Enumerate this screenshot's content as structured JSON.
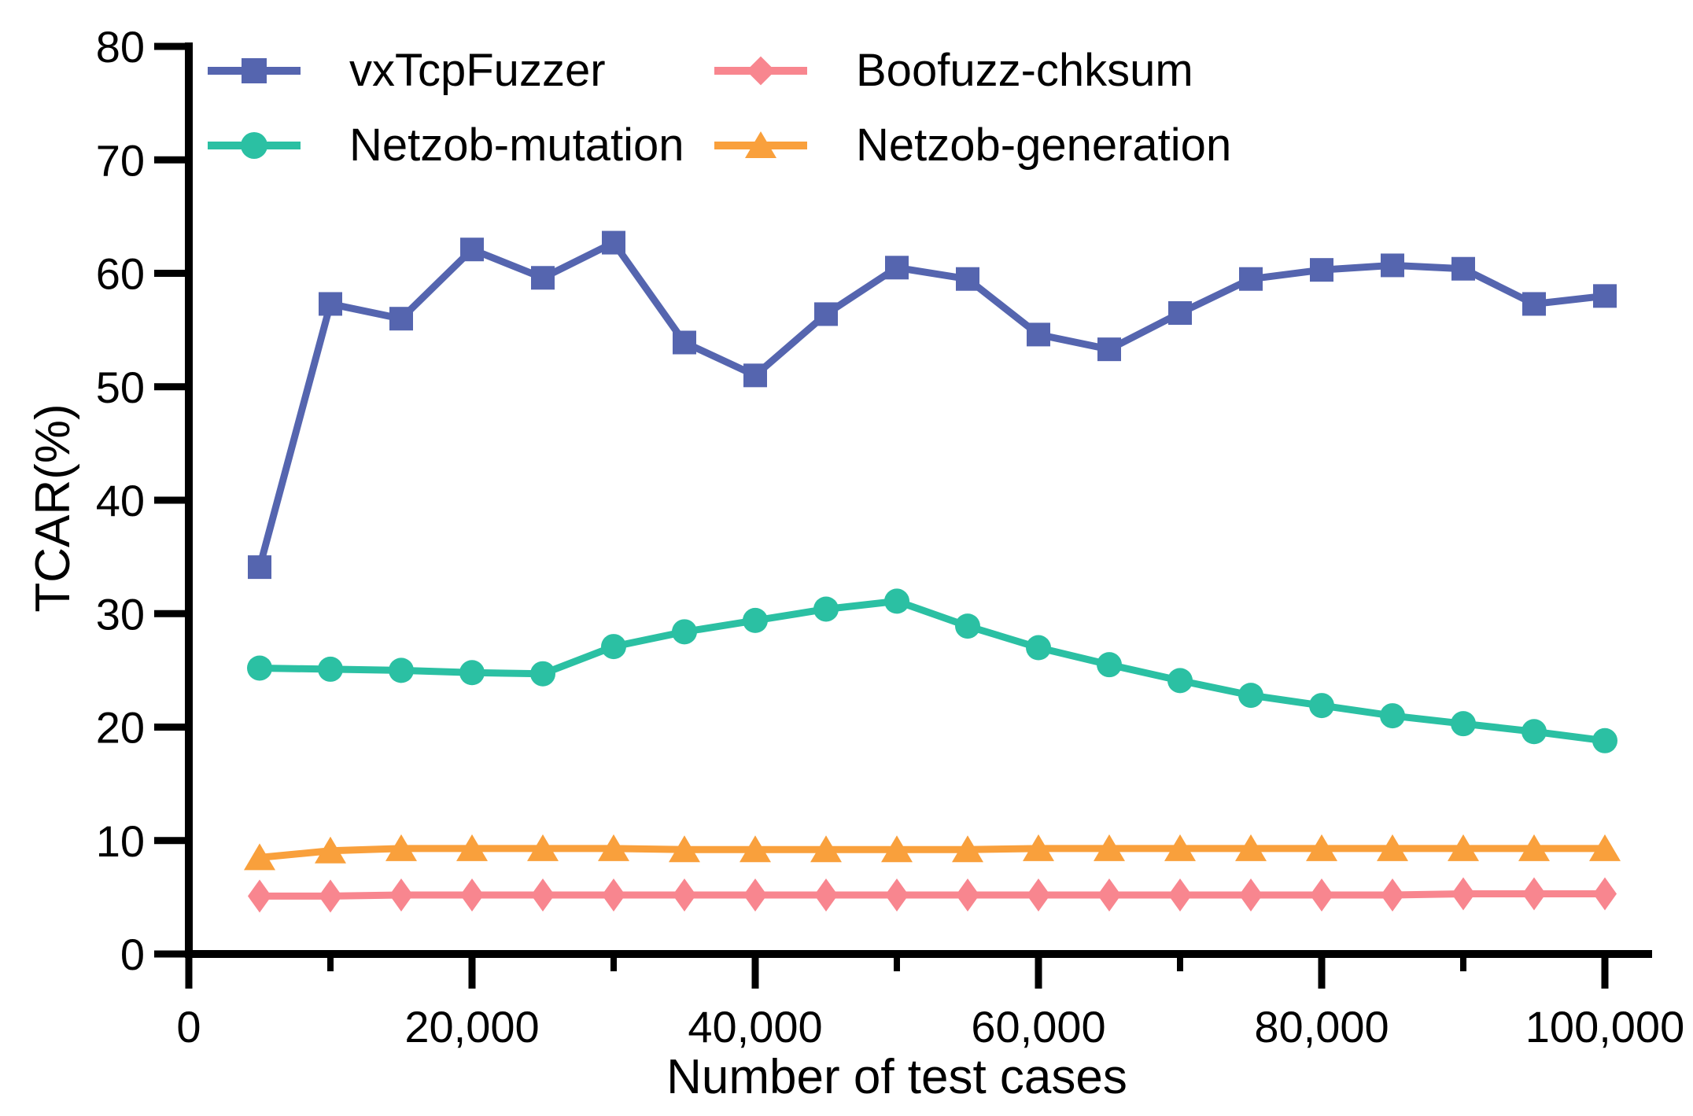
{
  "chart_data": {
    "type": "line",
    "title": "",
    "xlabel": "Number of test cases",
    "ylabel": "TCAR(%)",
    "xlim": [
      0,
      100000
    ],
    "ylim": [
      0,
      80
    ],
    "grid": false,
    "legend_position": "top, two columns, no frame",
    "x_major_ticks": [
      0,
      20000,
      40000,
      60000,
      80000,
      100000
    ],
    "x_major_tick_labels": [
      "0",
      "20,000",
      "40,000",
      "60,000",
      "80,000",
      "100,000"
    ],
    "x_minor_ticks": [
      10000,
      30000,
      50000,
      70000,
      90000
    ],
    "y_ticks": [
      0,
      10,
      20,
      30,
      40,
      50,
      60,
      70,
      80
    ],
    "y_tick_labels": [
      "0",
      "10",
      "20",
      "30",
      "40",
      "50",
      "60",
      "70",
      "80"
    ],
    "x": [
      5000,
      10000,
      15000,
      20000,
      25000,
      30000,
      35000,
      40000,
      45000,
      50000,
      55000,
      60000,
      65000,
      70000,
      75000,
      80000,
      85000,
      90000,
      95000,
      100000
    ],
    "series": [
      {
        "name": "vxTcpFuzzer",
        "color": "#5565AF",
        "marker": "square",
        "values": [
          34.1,
          57.3,
          56.0,
          62.1,
          59.6,
          62.7,
          53.9,
          51.0,
          56.4,
          60.5,
          59.5,
          54.6,
          53.3,
          56.5,
          59.5,
          60.3,
          60.7,
          60.4,
          57.3,
          58.0
        ]
      },
      {
        "name": "Netzob-mutation",
        "color": "#2BC0A3",
        "marker": "circle",
        "values": [
          25.2,
          25.1,
          25.0,
          24.8,
          24.7,
          27.1,
          28.4,
          29.4,
          30.4,
          31.1,
          28.9,
          27.0,
          25.5,
          24.1,
          22.8,
          21.9,
          21.0,
          20.3,
          19.6,
          18.8
        ]
      },
      {
        "name": "Boofuzz-chksum",
        "color": "#F8868F",
        "marker": "diamond",
        "values": [
          5.1,
          5.1,
          5.2,
          5.2,
          5.2,
          5.2,
          5.2,
          5.2,
          5.2,
          5.2,
          5.2,
          5.2,
          5.2,
          5.2,
          5.2,
          5.2,
          5.2,
          5.3,
          5.3,
          5.3
        ]
      },
      {
        "name": "Netzob-generation",
        "color": "#F9A03C",
        "marker": "triangle",
        "values": [
          8.5,
          9.1,
          9.3,
          9.3,
          9.3,
          9.3,
          9.2,
          9.2,
          9.2,
          9.2,
          9.2,
          9.3,
          9.3,
          9.3,
          9.3,
          9.3,
          9.3,
          9.3,
          9.3,
          9.3
        ]
      }
    ],
    "axis_color": "#000000",
    "text_color": "#000000"
  }
}
